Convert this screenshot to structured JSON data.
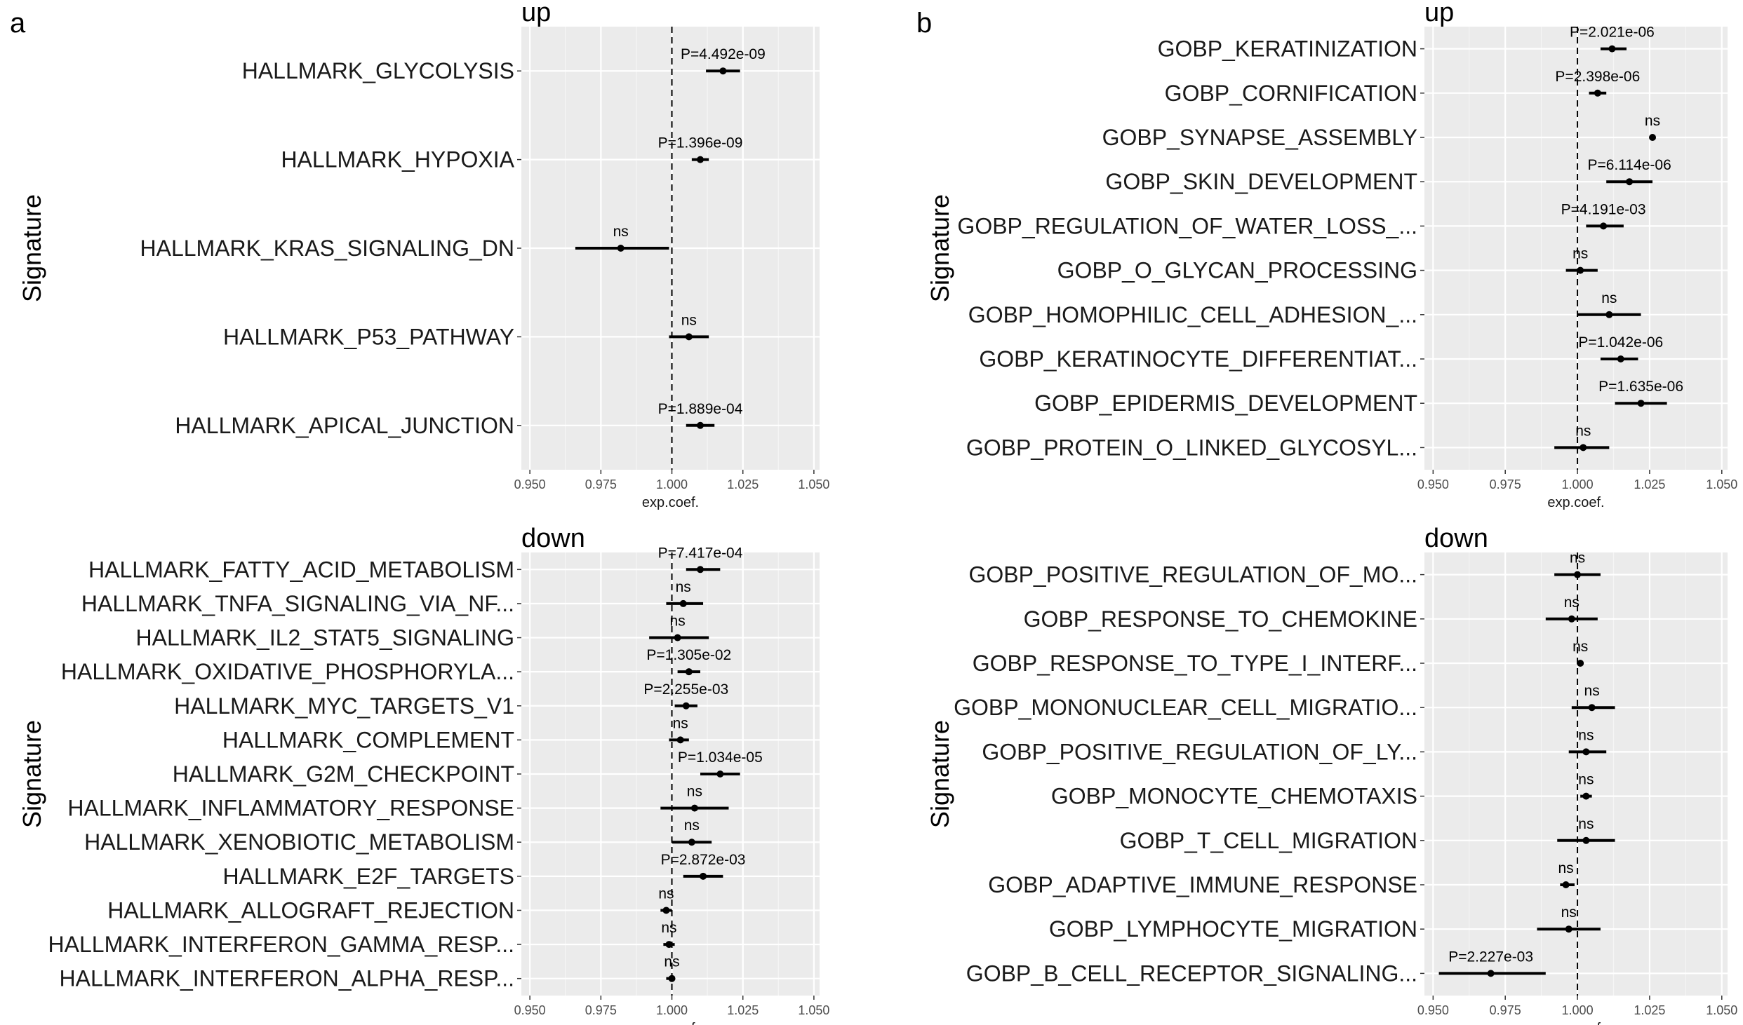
{
  "panel_letters": [
    "a",
    "b"
  ],
  "chart_data": [
    {
      "type": "forest",
      "panel": "a",
      "title": "up",
      "xlabel": "exp.coef.",
      "ylabel": "Signature",
      "xlim": [
        0.947,
        1.052
      ],
      "xticks": [
        "0.950",
        "0.975",
        "1.000",
        "1.025",
        "1.050"
      ],
      "reference_line": 1.0,
      "rows": [
        {
          "signature": "HALLMARK_GLYCOLYSIS",
          "estimate": 1.018,
          "lower": 1.012,
          "upper": 1.024,
          "p_label": "P=4.492e-09"
        },
        {
          "signature": "HALLMARK_HYPOXIA",
          "estimate": 1.01,
          "lower": 1.007,
          "upper": 1.013,
          "p_label": "P=1.396e-09"
        },
        {
          "signature": "HALLMARK_KRAS_SIGNALING_DN",
          "estimate": 0.982,
          "lower": 0.966,
          "upper": 0.999,
          "p_label": "ns"
        },
        {
          "signature": "HALLMARK_P53_PATHWAY",
          "estimate": 1.006,
          "lower": 0.999,
          "upper": 1.013,
          "p_label": "ns"
        },
        {
          "signature": "HALLMARK_APICAL_JUNCTION",
          "estimate": 1.01,
          "lower": 1.005,
          "upper": 1.015,
          "p_label": "P=1.889e-04"
        }
      ]
    },
    {
      "type": "forest",
      "panel": "a",
      "title": "down",
      "xlabel": "exp.coef.",
      "ylabel": "Signature",
      "xlim": [
        0.947,
        1.052
      ],
      "xticks": [
        "0.950",
        "0.975",
        "1.000",
        "1.025",
        "1.050"
      ],
      "reference_line": 1.0,
      "rows": [
        {
          "signature": "HALLMARK_FATTY_ACID_METABOLISM",
          "estimate": 1.01,
          "lower": 1.005,
          "upper": 1.017,
          "p_label": "P=7.417e-04"
        },
        {
          "signature": "HALLMARK_TNFA_SIGNALING_VIA_NF...",
          "estimate": 1.004,
          "lower": 0.998,
          "upper": 1.011,
          "p_label": "ns"
        },
        {
          "signature": "HALLMARK_IL2_STAT5_SIGNALING",
          "estimate": 1.002,
          "lower": 0.992,
          "upper": 1.013,
          "p_label": "ns"
        },
        {
          "signature": "HALLMARK_OXIDATIVE_PHOSPHORYLA...",
          "estimate": 1.006,
          "lower": 1.002,
          "upper": 1.01,
          "p_label": "P=1.305e-02"
        },
        {
          "signature": "HALLMARK_MYC_TARGETS_V1",
          "estimate": 1.005,
          "lower": 1.001,
          "upper": 1.009,
          "p_label": "P=2.255e-03"
        },
        {
          "signature": "HALLMARK_COMPLEMENT",
          "estimate": 1.003,
          "lower": 0.999,
          "upper": 1.006,
          "p_label": "ns"
        },
        {
          "signature": "HALLMARK_G2M_CHECKPOINT",
          "estimate": 1.017,
          "lower": 1.01,
          "upper": 1.024,
          "p_label": "P=1.034e-05"
        },
        {
          "signature": "HALLMARK_INFLAMMATORY_RESPONSE",
          "estimate": 1.008,
          "lower": 0.996,
          "upper": 1.02,
          "p_label": "ns"
        },
        {
          "signature": "HALLMARK_XENOBIOTIC_METABOLISM",
          "estimate": 1.007,
          "lower": 1.0,
          "upper": 1.014,
          "p_label": "ns"
        },
        {
          "signature": "HALLMARK_E2F_TARGETS",
          "estimate": 1.011,
          "lower": 1.004,
          "upper": 1.018,
          "p_label": "P=2.872e-03"
        },
        {
          "signature": "HALLMARK_ALLOGRAFT_REJECTION",
          "estimate": 0.998,
          "lower": 0.996,
          "upper": 1.0,
          "p_label": "ns"
        },
        {
          "signature": "HALLMARK_INTERFERON_GAMMA_RESP...",
          "estimate": 0.999,
          "lower": 0.997,
          "upper": 1.001,
          "p_label": "ns"
        },
        {
          "signature": "HALLMARK_INTERFERON_ALPHA_RESP...",
          "estimate": 1.0,
          "lower": 0.998,
          "upper": 1.001,
          "p_label": "ns"
        }
      ]
    },
    {
      "type": "forest",
      "panel": "b",
      "title": "up",
      "xlabel": "exp.coef.",
      "ylabel": "Signature",
      "xlim": [
        0.947,
        1.052
      ],
      "xticks": [
        "0.950",
        "0.975",
        "1.000",
        "1.025",
        "1.050"
      ],
      "reference_line": 1.0,
      "rows": [
        {
          "signature": "GOBP_KERATINIZATION",
          "estimate": 1.012,
          "lower": 1.008,
          "upper": 1.017,
          "p_label": "P=2.021e-06"
        },
        {
          "signature": "GOBP_CORNIFICATION",
          "estimate": 1.007,
          "lower": 1.004,
          "upper": 1.01,
          "p_label": "P=2.398e-06"
        },
        {
          "signature": "GOBP_SYNAPSE_ASSEMBLY",
          "estimate": 1.026,
          "lower": 1.025,
          "upper": 1.027,
          "p_label": "ns"
        },
        {
          "signature": "GOBP_SKIN_DEVELOPMENT",
          "estimate": 1.018,
          "lower": 1.01,
          "upper": 1.026,
          "p_label": "P=6.114e-06"
        },
        {
          "signature": "GOBP_REGULATION_OF_WATER_LOSS_...",
          "estimate": 1.009,
          "lower": 1.003,
          "upper": 1.016,
          "p_label": "P=4.191e-03"
        },
        {
          "signature": "GOBP_O_GLYCAN_PROCESSING",
          "estimate": 1.001,
          "lower": 0.996,
          "upper": 1.007,
          "p_label": "ns"
        },
        {
          "signature": "GOBP_HOMOPHILIC_CELL_ADHESION_...",
          "estimate": 1.011,
          "lower": 1.0,
          "upper": 1.022,
          "p_label": "ns"
        },
        {
          "signature": "GOBP_KERATINOCYTE_DIFFERENTIAT...",
          "estimate": 1.015,
          "lower": 1.008,
          "upper": 1.021,
          "p_label": "P=1.042e-06"
        },
        {
          "signature": "GOBP_EPIDERMIS_DEVELOPMENT",
          "estimate": 1.022,
          "lower": 1.013,
          "upper": 1.031,
          "p_label": "P=1.635e-06"
        },
        {
          "signature": "GOBP_PROTEIN_O_LINKED_GLYCOSYL...",
          "estimate": 1.002,
          "lower": 0.992,
          "upper": 1.011,
          "p_label": "ns"
        }
      ]
    },
    {
      "type": "forest",
      "panel": "b",
      "title": "down",
      "xlabel": "exp.coef.",
      "ylabel": "Signature",
      "xlim": [
        0.947,
        1.052
      ],
      "xticks": [
        "0.950",
        "0.975",
        "1.000",
        "1.025",
        "1.050"
      ],
      "reference_line": 1.0,
      "rows": [
        {
          "signature": "GOBP_POSITIVE_REGULATION_OF_MO...",
          "estimate": 1.0,
          "lower": 0.992,
          "upper": 1.008,
          "p_label": "ns"
        },
        {
          "signature": "GOBP_RESPONSE_TO_CHEMOKINE",
          "estimate": 0.998,
          "lower": 0.989,
          "upper": 1.007,
          "p_label": "ns"
        },
        {
          "signature": "GOBP_RESPONSE_TO_TYPE_I_INTERF...",
          "estimate": 1.001,
          "lower": 1.0,
          "upper": 1.002,
          "p_label": "ns"
        },
        {
          "signature": "GOBP_MONONUCLEAR_CELL_MIGRATIO...",
          "estimate": 1.005,
          "lower": 0.998,
          "upper": 1.013,
          "p_label": "ns"
        },
        {
          "signature": "GOBP_POSITIVE_REGULATION_OF_LY...",
          "estimate": 1.003,
          "lower": 0.997,
          "upper": 1.01,
          "p_label": "ns"
        },
        {
          "signature": "GOBP_MONOCYTE_CHEMOTAXIS",
          "estimate": 1.003,
          "lower": 1.001,
          "upper": 1.005,
          "p_label": "ns"
        },
        {
          "signature": "GOBP_T_CELL_MIGRATION",
          "estimate": 1.003,
          "lower": 0.993,
          "upper": 1.013,
          "p_label": "ns"
        },
        {
          "signature": "GOBP_ADAPTIVE_IMMUNE_RESPONSE",
          "estimate": 0.996,
          "lower": 0.994,
          "upper": 0.999,
          "p_label": "ns"
        },
        {
          "signature": "GOBP_LYMPHOCYTE_MIGRATION",
          "estimate": 0.997,
          "lower": 0.986,
          "upper": 1.008,
          "p_label": "ns"
        },
        {
          "signature": "GOBP_B_CELL_RECEPTOR_SIGNALING...",
          "estimate": 0.97,
          "lower": 0.952,
          "upper": 0.989,
          "p_label": "P=2.227e-03"
        }
      ]
    }
  ]
}
